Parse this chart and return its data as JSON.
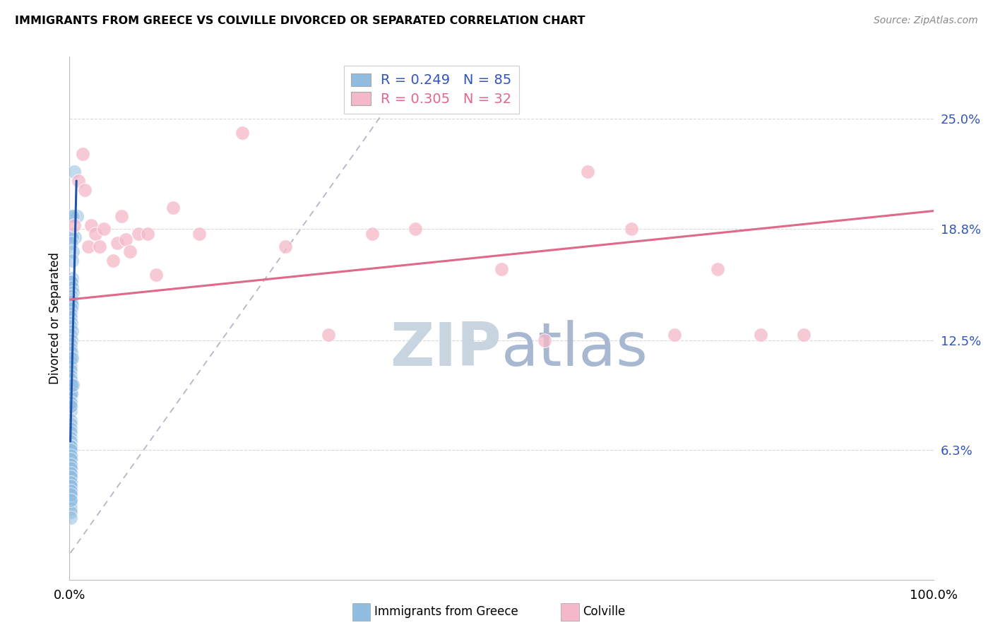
{
  "title": "IMMIGRANTS FROM GREECE VS COLVILLE DIVORCED OR SEPARATED CORRELATION CHART",
  "source": "Source: ZipAtlas.com",
  "ylabel": "Divorced or Separated",
  "ytick_labels": [
    "6.3%",
    "12.5%",
    "18.8%",
    "25.0%"
  ],
  "ytick_vals": [
    0.063,
    0.125,
    0.188,
    0.25
  ],
  "xlim": [
    0.0,
    1.0
  ],
  "ylim": [
    -0.01,
    0.285
  ],
  "plot_ylim": [
    -0.01,
    0.285
  ],
  "blue_scatter_x": [
    0.005,
    0.009,
    0.002,
    0.003,
    0.006,
    0.004,
    0.003,
    0.002,
    0.004,
    0.003,
    0.003,
    0.002,
    0.002,
    0.003,
    0.004,
    0.002,
    0.002,
    0.002,
    0.003,
    0.002,
    0.001,
    0.001,
    0.002,
    0.001,
    0.003,
    0.001,
    0.002,
    0.001,
    0.001,
    0.002,
    0.001,
    0.001,
    0.001,
    0.001,
    0.001,
    0.001,
    0.002,
    0.001,
    0.001,
    0.001,
    0.001,
    0.001,
    0.001,
    0.002,
    0.001,
    0.001,
    0.001,
    0.001,
    0.001,
    0.001,
    0.001,
    0.001,
    0.001,
    0.001,
    0.002,
    0.001,
    0.001,
    0.003,
    0.004,
    0.001,
    0.001,
    0.001,
    0.001,
    0.001,
    0.001,
    0.001,
    0.001,
    0.001,
    0.001,
    0.001,
    0.001,
    0.001,
    0.001,
    0.001,
    0.001,
    0.001,
    0.001,
    0.001,
    0.001,
    0.001,
    0.001,
    0.001,
    0.001,
    0.001,
    0.001
  ],
  "blue_scatter_y": [
    0.22,
    0.195,
    0.195,
    0.185,
    0.183,
    0.195,
    0.183,
    0.18,
    0.175,
    0.17,
    0.16,
    0.158,
    0.158,
    0.155,
    0.152,
    0.15,
    0.148,
    0.147,
    0.145,
    0.143,
    0.14,
    0.138,
    0.135,
    0.133,
    0.13,
    0.128,
    0.125,
    0.123,
    0.12,
    0.118,
    0.115,
    0.113,
    0.11,
    0.108,
    0.105,
    0.103,
    0.1,
    0.098,
    0.095,
    0.093,
    0.09,
    0.088,
    0.085,
    0.1,
    0.08,
    0.078,
    0.075,
    0.073,
    0.07,
    0.068,
    0.065,
    0.063,
    0.06,
    0.058,
    0.095,
    0.055,
    0.053,
    0.115,
    0.1,
    0.05,
    0.048,
    0.045,
    0.043,
    0.04,
    0.038,
    0.035,
    0.033,
    0.03,
    0.028,
    0.025,
    0.09,
    0.088,
    0.065,
    0.063,
    0.06,
    0.058,
    0.055,
    0.053,
    0.05,
    0.048,
    0.045,
    0.043,
    0.04,
    0.038,
    0.035
  ],
  "pink_scatter_x": [
    0.005,
    0.01,
    0.015,
    0.018,
    0.022,
    0.025,
    0.03,
    0.035,
    0.04,
    0.05,
    0.055,
    0.06,
    0.065,
    0.07,
    0.08,
    0.09,
    0.1,
    0.12,
    0.15,
    0.2,
    0.25,
    0.3,
    0.35,
    0.4,
    0.5,
    0.55,
    0.6,
    0.65,
    0.7,
    0.75,
    0.8,
    0.85
  ],
  "pink_scatter_y": [
    0.19,
    0.215,
    0.23,
    0.21,
    0.178,
    0.19,
    0.185,
    0.178,
    0.188,
    0.17,
    0.18,
    0.195,
    0.182,
    0.175,
    0.185,
    0.185,
    0.162,
    0.2,
    0.185,
    0.242,
    0.178,
    0.128,
    0.185,
    0.188,
    0.165,
    0.125,
    0.22,
    0.188,
    0.128,
    0.165,
    0.128,
    0.128
  ],
  "blue_line_x": [
    0.001,
    0.008
  ],
  "blue_line_y": [
    0.068,
    0.215
  ],
  "pink_line_x": [
    0.0,
    1.0
  ],
  "pink_line_y": [
    0.148,
    0.198
  ],
  "dashed_line_x": [
    0.001,
    0.38
  ],
  "dashed_line_y": [
    0.005,
    0.265
  ],
  "blue_scatter_color": "#90bce0",
  "pink_scatter_color": "#f5b8c8",
  "blue_line_color": "#2255aa",
  "pink_line_color": "#e06888",
  "dashed_line_color": "#b0b8c8",
  "watermark_zip_color": "#c8d4e0",
  "watermark_atlas_color": "#a8b8d0",
  "background_color": "#ffffff",
  "grid_color": "#d8d8d8",
  "ytick_color": "#3355bb",
  "legend_blue_text_color": "#3355bb",
  "legend_pink_text_color": "#e06888",
  "legend_blue_n_color": "#3355bb",
  "legend_pink_n_color": "#e06888"
}
